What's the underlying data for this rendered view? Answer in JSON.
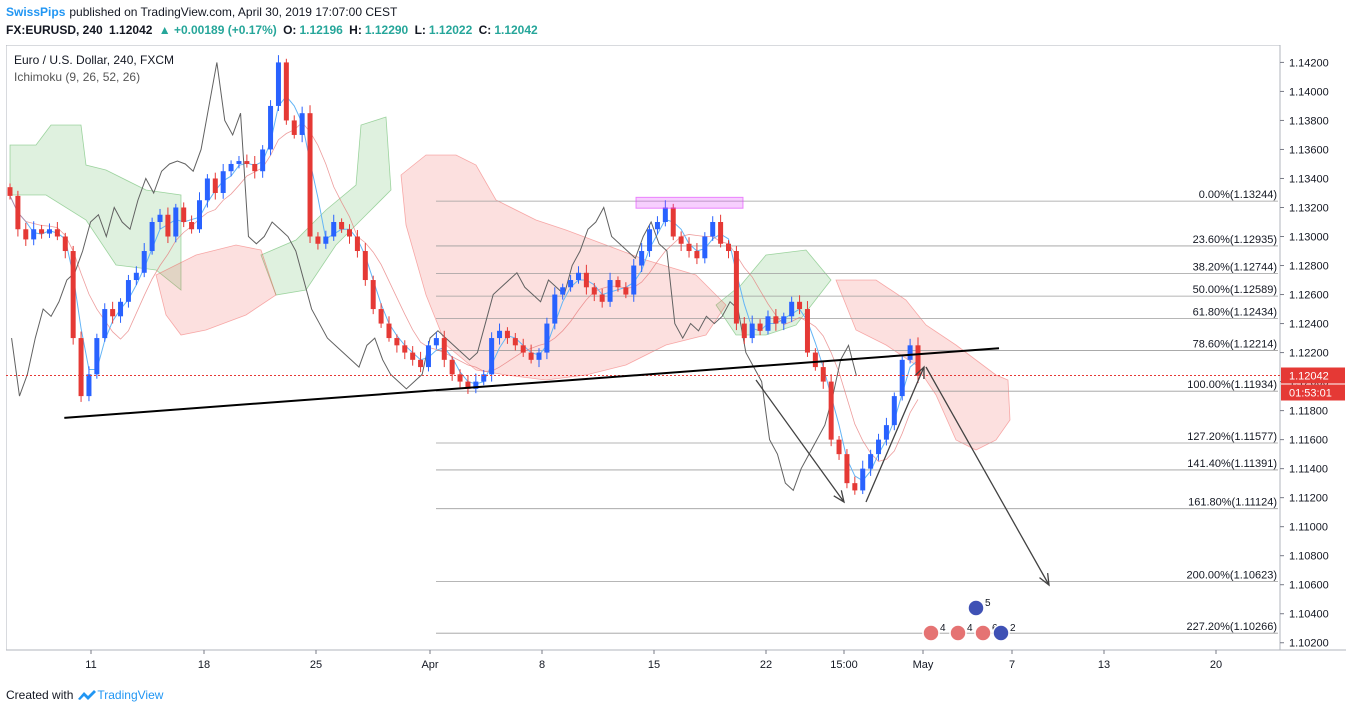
{
  "header": {
    "brand": "SwissPips",
    "published": "published on TradingView.com, April 30, 2019 17:07:00 CEST",
    "symbol": "FX:EURUSD, 240",
    "last": "1.12042",
    "change": "▲ +0.00189 (+0.17%)",
    "o_label": "O:",
    "o": "1.12196",
    "h_label": "H:",
    "h": "1.12290",
    "l_label": "L:",
    "l": "1.12022",
    "c_label": "C:",
    "c": "1.12042"
  },
  "legend": {
    "title": "Euro / U.S. Dollar, 240, FXCM",
    "indicator": "Ichimoku (9, 26, 52, 26)"
  },
  "footer": {
    "created": "Created with",
    "tv": "TradingView"
  },
  "colors": {
    "up": "#2962ff",
    "down": "#e53935",
    "accent": "#2196f3",
    "green": "#26a69a",
    "price_tag": "#e53935"
  },
  "chart_data": {
    "type": "candlestick",
    "title": "Euro / U.S. Dollar, 240, FXCM",
    "ylim": [
      1.1015,
      1.1432
    ],
    "y_ticks": [
      "1.14200",
      "1.14000",
      "1.13800",
      "1.13600",
      "1.13400",
      "1.13200",
      "1.13000",
      "1.12800",
      "1.12600",
      "1.12400",
      "1.12200",
      "1.12000",
      "1.11800",
      "1.11600",
      "1.11400",
      "1.11200",
      "1.11000",
      "1.10800",
      "1.10600",
      "1.10400",
      "1.10200"
    ],
    "x_ticks": [
      "11",
      "18",
      "25",
      "Apr",
      "8",
      "15",
      "22",
      "15:00",
      "May",
      "7",
      "13",
      "20"
    ],
    "last_price": "1.12042",
    "countdown": "01:53:01",
    "fib_levels": [
      {
        "label": "0.00%(1.13244)",
        "value": 1.13244
      },
      {
        "label": "23.60%(1.12935)",
        "value": 1.12935
      },
      {
        "label": "38.20%(1.12744)",
        "value": 1.12744
      },
      {
        "label": "50.00%(1.12589)",
        "value": 1.12589
      },
      {
        "label": "61.80%(1.12434)",
        "value": 1.12434
      },
      {
        "label": "78.60%(1.12214)",
        "value": 1.12214
      },
      {
        "label": "100.00%(1.11934)",
        "value": 1.11934
      },
      {
        "label": "127.20%(1.11577)",
        "value": 1.11577
      },
      {
        "label": "141.40%(1.11391)",
        "value": 1.11391
      },
      {
        "label": "161.80%(1.11124)",
        "value": 1.11124
      },
      {
        "label": "200.00%(1.10623)",
        "value": 1.10623
      },
      {
        "label": "227.20%(1.10266)",
        "value": 1.10266
      }
    ],
    "trendline": {
      "from": [
        0.06,
        1.1175
      ],
      "to": [
        1.0,
        1.1223
      ]
    },
    "events": [
      {
        "flag": "US",
        "count": "4"
      },
      {
        "flag": "US",
        "count": "4"
      },
      {
        "flag": "US",
        "count": "6"
      },
      {
        "flag": "EU",
        "count": "5"
      },
      {
        "flag": "EU",
        "count": "2"
      }
    ],
    "closes": [
      1.1328,
      1.1305,
      1.1298,
      1.1305,
      1.1302,
      1.1305,
      1.13,
      1.129,
      1.123,
      1.119,
      1.1205,
      1.123,
      1.125,
      1.1245,
      1.1255,
      1.127,
      1.1275,
      1.129,
      1.131,
      1.1315,
      1.13,
      1.132,
      1.131,
      1.1305,
      1.1325,
      1.134,
      1.133,
      1.1345,
      1.135,
      1.1352,
      1.135,
      1.1345,
      1.136,
      1.139,
      1.142,
      1.138,
      1.137,
      1.1385,
      1.13,
      1.1295,
      1.13,
      1.131,
      1.1305,
      1.13,
      1.129,
      1.127,
      1.125,
      1.124,
      1.123,
      1.1225,
      1.122,
      1.1215,
      1.121,
      1.1225,
      1.123,
      1.1215,
      1.1205,
      1.12,
      1.1195,
      1.12,
      1.1205,
      1.123,
      1.1235,
      1.123,
      1.1225,
      1.122,
      1.1215,
      1.122,
      1.124,
      1.126,
      1.1265,
      1.127,
      1.1275,
      1.1265,
      1.126,
      1.1255,
      1.127,
      1.1265,
      1.126,
      1.128,
      1.129,
      1.1305,
      1.131,
      1.132,
      1.13,
      1.1295,
      1.129,
      1.1285,
      1.13,
      1.131,
      1.1295,
      1.129,
      1.124,
      1.123,
      1.124,
      1.1235,
      1.1245,
      1.124,
      1.1245,
      1.1255,
      1.125,
      1.122,
      1.121,
      1.12,
      1.116,
      1.115,
      1.113,
      1.1125,
      1.114,
      1.115,
      1.116,
      1.117,
      1.119,
      1.1215,
      1.1225,
      1.1204
    ]
  }
}
